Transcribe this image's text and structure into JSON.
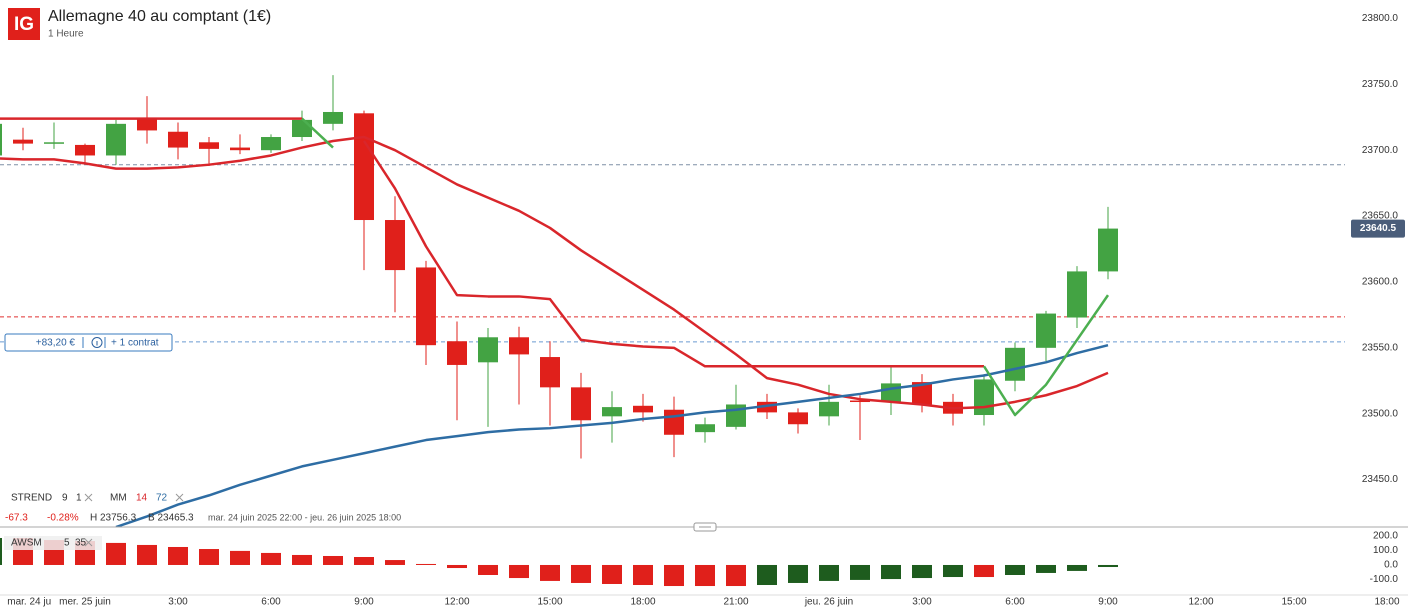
{
  "header": {
    "logo": "IG",
    "title": "Allemagne 40 au comptant (1€)",
    "interval": "1 Heure",
    "stats": {
      "change": "-67.3",
      "change_pct": "-0.28%",
      "high": "H 23756.3",
      "low": "B 23465.3",
      "range": "mar. 24 juin 2025 22:00 - jeu. 26 juin 2025 18:00"
    },
    "indicators": [
      {
        "label": "STREND",
        "params": [
          {
            "text": "9",
            "color": "#333333"
          },
          {
            "text": "1",
            "color": "#333333"
          }
        ]
      },
      {
        "label": "MM",
        "params": [
          {
            "text": "14",
            "color": "#d9262b"
          },
          {
            "text": "72",
            "color": "#2e6da4"
          }
        ]
      }
    ],
    "position": {
      "pnl": "+83,20 €",
      "size": "+ 1 contrat"
    }
  },
  "chart_data": [
    {
      "type": "candlestick",
      "categories": [
        null,
        null,
        null,
        null,
        null,
        null,
        null,
        null,
        null,
        null,
        null,
        null,
        null,
        null,
        null,
        null,
        null,
        null,
        null,
        null,
        null,
        null,
        null,
        null,
        null,
        null,
        null,
        null,
        null,
        null,
        null,
        null,
        null,
        null,
        null,
        null,
        null
      ],
      "open": [
        23696,
        23708,
        23706,
        23704,
        23696,
        23724,
        23714,
        23706,
        23702,
        23700,
        23710,
        23720,
        23728,
        23647,
        23611,
        23555,
        23539,
        23558,
        23543,
        23520,
        23498,
        23506,
        23503,
        23486,
        23490,
        23509,
        23501,
        23498,
        23510,
        23509,
        23524,
        23509,
        23499,
        23525,
        23550,
        23573,
        23608
      ],
      "high": [
        23722,
        23717,
        23721,
        23705,
        23723,
        23741,
        23721,
        23710,
        23712,
        23712,
        23730,
        23757,
        23730,
        23665,
        23616,
        23570,
        23565,
        23566,
        23555,
        23531,
        23517,
        23515,
        23513,
        23497,
        23522,
        23515,
        23504,
        23522,
        23514,
        23537,
        23530,
        23515,
        23530,
        23554,
        23578,
        23612,
        23657
      ],
      "low": [
        23692,
        23700,
        23701,
        23690,
        23689,
        23705,
        23693,
        23688,
        23697,
        23698,
        23707,
        23715,
        23609,
        23577,
        23537,
        23495,
        23490,
        23507,
        23491,
        23466,
        23478,
        23494,
        23467,
        23478,
        23488,
        23496,
        23485,
        23491,
        23480,
        23499,
        23501,
        23491,
        23491,
        23517,
        23540,
        23565,
        23602
      ],
      "close": [
        23720,
        23705,
        23706,
        23696,
        23720,
        23715,
        23702,
        23701,
        23700,
        23710,
        23723,
        23729,
        23647,
        23609,
        23552,
        23537,
        23558,
        23545,
        23520,
        23495,
        23505,
        23501,
        23484,
        23492,
        23507,
        23501,
        23492,
        23509,
        23509,
        23523,
        23507,
        23500,
        23526,
        23550,
        23576,
        23608,
        23640.5
      ],
      "up_color": "#43a343",
      "down_color": "#e0201b",
      "series": [
        {
          "color": "#d9262b",
          "values": [
            23694,
            23693,
            23693,
            23690,
            23686,
            23686,
            23687,
            23689,
            23692,
            23696,
            23702,
            23707,
            23710,
            23700,
            23687,
            23674,
            23664,
            23654,
            23641,
            23624,
            23609,
            23594,
            23579,
            23562,
            23545,
            23527,
            23522,
            23515,
            23511,
            23509,
            23507,
            23504,
            23505,
            23509,
            23514,
            23521,
            23531
          ]
        },
        {
          "color": "#2e6da4",
          "values": [
            null,
            null,
            null,
            null,
            23414,
            23422,
            23431,
            23438,
            23446,
            23453,
            23460,
            23465,
            23470,
            23475,
            23480,
            23483,
            23486,
            23488,
            23489,
            23491,
            23493,
            23496,
            23498,
            23501,
            23503,
            23506,
            23509,
            23512,
            23515,
            23519,
            23522,
            23526,
            23529,
            23534,
            23539,
            23546,
            23552
          ]
        },
        {
          "color": "#d9262b",
          "values": [
            23724,
            23724,
            23724,
            23724,
            23724,
            23724,
            23724,
            23724,
            23724,
            23724,
            23724,
            null,
            23707,
            23671,
            23627,
            23590,
            23589,
            23589,
            23587,
            23556,
            23553,
            23551,
            23550,
            23536,
            23536,
            23536,
            23536,
            23536,
            23536,
            23536,
            23536,
            23536,
            23536,
            null,
            null,
            null,
            null
          ]
        },
        {
          "color": "#4caf50",
          "values": [
            null,
            null,
            null,
            null,
            null,
            null,
            null,
            null,
            null,
            null,
            23724,
            23702,
            null,
            null,
            null,
            null,
            null,
            null,
            null,
            null,
            null,
            null,
            null,
            null,
            null,
            null,
            null,
            null,
            null,
            null,
            null,
            null,
            23536,
            23499,
            23522,
            23556,
            23590
          ]
        }
      ],
      "levels": [
        {
          "value": 23689,
          "color": "#7f8fa6"
        },
        {
          "value": 23573.5,
          "color": "#e03030"
        },
        {
          "value": 23554.5,
          "color": "#6b9bd1"
        }
      ],
      "last_price": 23640.5,
      "ylim": [
        23414,
        23814
      ],
      "yticks": [
        {
          "value": 23450,
          "label": "23450.0"
        },
        {
          "value": 23500,
          "label": "23500.0"
        },
        {
          "value": 23550,
          "label": "23550.0"
        },
        {
          "value": 23600,
          "label": "23600.0"
        },
        {
          "value": 23650,
          "label": "23650.0"
        },
        {
          "value": 23700,
          "label": "23700.0"
        },
        {
          "value": 23750,
          "label": "23750.0"
        },
        {
          "value": 23800,
          "label": "23800.0"
        }
      ],
      "xticks": [
        {
          "value": 1.2,
          "label": "mar. 24 ju"
        },
        {
          "value": 3,
          "label": "mer. 25 juin"
        },
        {
          "value": 6,
          "label": "3:00"
        },
        {
          "value": 9,
          "label": "6:00"
        },
        {
          "value": 12,
          "label": "9:00"
        },
        {
          "value": 15,
          "label": "12:00"
        },
        {
          "value": 18,
          "label": "15:00"
        },
        {
          "value": 21,
          "label": "18:00"
        },
        {
          "value": 24,
          "label": "21:00"
        },
        {
          "value": 27,
          "label": "jeu. 26 juin"
        },
        {
          "value": 30,
          "label": "3:00"
        },
        {
          "value": 33,
          "label": "6:00"
        },
        {
          "value": 36,
          "label": "9:00"
        },
        {
          "value": 39,
          "label": "12:00"
        },
        {
          "value": 42,
          "label": "15:00"
        },
        {
          "value": 45,
          "label": "18:00"
        }
      ]
    },
    {
      "type": "bar",
      "title": "AWSM",
      "params": [
        "5",
        "35"
      ],
      "values": [
        186,
        186,
        172,
        165,
        152,
        138,
        124,
        110,
        97,
        83,
        69,
        62,
        55,
        34,
        7,
        -21,
        -69,
        -90,
        -110,
        -124,
        -131,
        -138,
        -145,
        -145,
        -145,
        -138,
        -124,
        -110,
        -103,
        -97,
        -90,
        -83,
        -83,
        -69,
        -55,
        -41,
        -14
      ],
      "up_color": "#1e5c1e",
      "down_color": "#e0201b",
      "ylim": [
        -200,
        248
      ],
      "yticks": [
        {
          "value": -100,
          "label": "-100.0"
        },
        {
          "value": 0,
          "label": "0.0"
        },
        {
          "value": 100,
          "label": "100.0"
        },
        {
          "value": 200,
          "label": "200.0"
        }
      ]
    }
  ]
}
